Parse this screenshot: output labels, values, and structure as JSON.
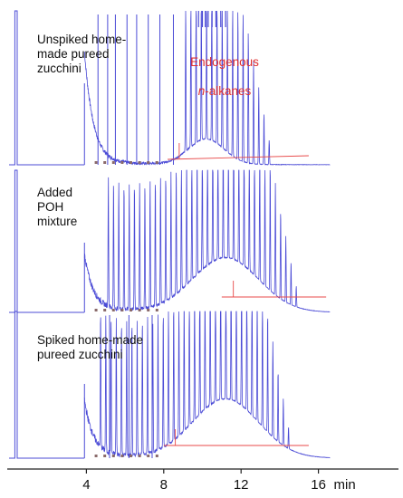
{
  "chart_data": {
    "type": "line",
    "xlabel_unit": "min",
    "xticks": [
      4,
      8,
      12,
      16
    ],
    "x_range": [
      0,
      17.6
    ],
    "panels": [
      {
        "label": "Unspiked home-\nmade pureed\nzucchini",
        "annotation": "Endogenous n-alkanes",
        "annotation_parts": [
          "Endogenous",
          "n",
          "-alkanes"
        ]
      },
      {
        "label": "Added\nPOH\nmixture"
      },
      {
        "label": "Spiked home-made\npureed zucchini"
      }
    ],
    "colors": {
      "trace": "#4b4bd6",
      "baseline": "#e84a4a",
      "annotation": "#e03030",
      "axis": "#222222"
    }
  }
}
